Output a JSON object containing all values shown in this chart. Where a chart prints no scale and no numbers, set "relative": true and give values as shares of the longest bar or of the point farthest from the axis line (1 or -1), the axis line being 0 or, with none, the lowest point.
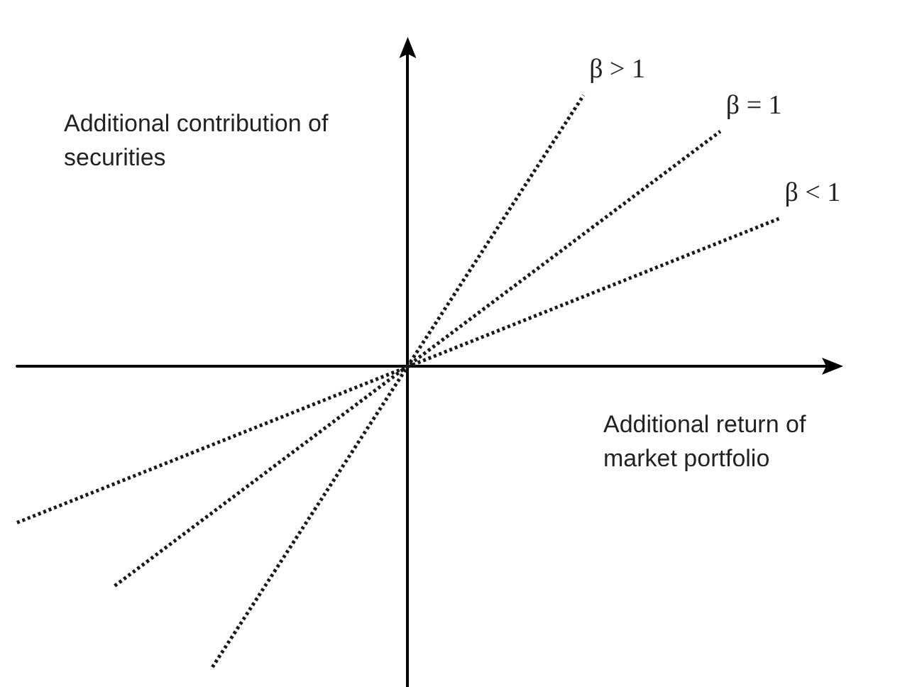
{
  "chart_data": {
    "type": "line",
    "relative": true,
    "xlabel": "Additional return of market portfolio",
    "ylabel": "Additional contribution of securities",
    "line_style": "dotted",
    "marker": "none",
    "categories": [
      null,
      null,
      null,
      null,
      null,
      null,
      null,
      null,
      null,
      null,
      null,
      null,
      null,
      null,
      null,
      null,
      null,
      null,
      null,
      null,
      null,
      null,
      null,
      null,
      null,
      null,
      null,
      null,
      null,
      null,
      null,
      null,
      null,
      null,
      null,
      null,
      null,
      null,
      null,
      null,
      null,
      null,
      null
    ],
    "series": [
      {
        "name": "β > 1",
        "color": "#1a1a1a",
        "values": [
          null,
          null,
          null,
          null,
          null,
          null,
          null,
          null,
          null,
          null,
          -1,
          null,
          null,
          null,
          null,
          null,
          null,
          null,
          null,
          null,
          null,
          null,
          null,
          null,
          null,
          null,
          null,
          null,
          null,
          0.9,
          null,
          null,
          null,
          null,
          null,
          null,
          null,
          null,
          null,
          null,
          null,
          null,
          null
        ]
      },
      {
        "name": "β = 1",
        "color": "#1a1a1a",
        "values": [
          null,
          null,
          null,
          null,
          null,
          -0.73,
          null,
          null,
          null,
          null,
          null,
          null,
          null,
          null,
          null,
          null,
          null,
          null,
          null,
          null,
          null,
          null,
          null,
          null,
          null,
          null,
          null,
          null,
          null,
          null,
          null,
          null,
          null,
          null,
          null,
          null,
          0.78,
          null,
          null,
          null,
          null,
          null,
          null
        ]
      },
      {
        "name": "β < 1",
        "color": "#1a1a1a",
        "values": [
          -0.52,
          null,
          null,
          null,
          null,
          null,
          null,
          null,
          null,
          null,
          null,
          null,
          null,
          null,
          null,
          null,
          null,
          null,
          null,
          null,
          null,
          null,
          null,
          null,
          null,
          null,
          null,
          null,
          null,
          null,
          null,
          null,
          null,
          null,
          null,
          null,
          null,
          null,
          null,
          0.49,
          null,
          null,
          null
        ]
      }
    ]
  }
}
